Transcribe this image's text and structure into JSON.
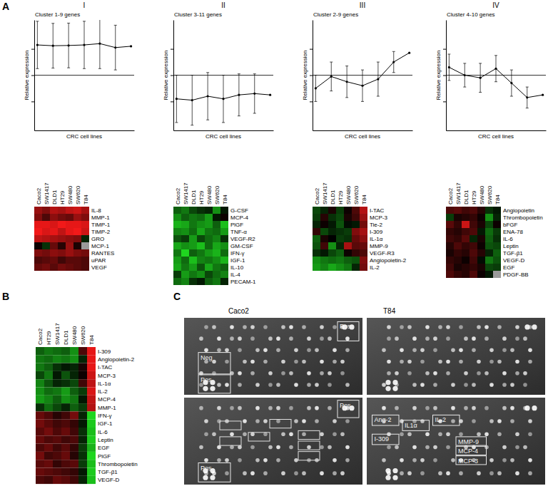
{
  "figure_labels": [
    "A",
    "B",
    "C"
  ],
  "chart_data": [
    {
      "type": "line",
      "panel_label": "I",
      "title": "Cluster 1-9 genes",
      "x_label": "CRC cell lines",
      "y_label": "Relative expression",
      "x": [
        1,
        2,
        3,
        4,
        5,
        6,
        7
      ],
      "xlim": [
        0.8,
        7.2
      ],
      "ylim": [
        -2.1,
        2.1
      ],
      "yticks": [
        -1,
        0,
        1
      ],
      "reference_line": 0,
      "tick_labels": false,
      "values": [
        1.15,
        1.12,
        1.13,
        1.15,
        1.2,
        1.05,
        1.1
      ],
      "errors": [
        0.9,
        0.85,
        0.85,
        0.9,
        0.95,
        0.85,
        null
      ],
      "color": "#000000",
      "marker": "circle"
    },
    {
      "type": "heatmap",
      "columns": [
        "Caco2",
        "SW1417",
        "DLD1",
        "HT29",
        "SW480",
        "SW620",
        "T84"
      ],
      "rows": [
        "IL-8",
        "MMP-1",
        "TIMP-1",
        "TIMP-2",
        "GRO",
        "MCP-1",
        "RANTES",
        "uPAR",
        "VEGF"
      ],
      "zlim": [
        -2,
        2
      ],
      "cells": [
        [
          1.2,
          1.0,
          1.4,
          1.3,
          1.5,
          1.6,
          1.3
        ],
        [
          1.0,
          0.6,
          1.1,
          0.9,
          0.8,
          1.2,
          1.0
        ],
        [
          1.8,
          1.8,
          1.7,
          1.9,
          1.8,
          1.8,
          1.7
        ],
        [
          1.9,
          1.7,
          1.8,
          1.5,
          1.8,
          1.9,
          1.6
        ],
        [
          1.5,
          1.4,
          1.3,
          1.2,
          1.1,
          1.0,
          -0.3
        ],
        [
          0.1,
          -0.4,
          0.8,
          0.3,
          1.2,
          0.2,
          null
        ],
        [
          1.0,
          0.9,
          1.1,
          1.0,
          1.2,
          1.0,
          0.9
        ],
        [
          0.6,
          0.7,
          0.8,
          0.5,
          0.7,
          0.7,
          0.6
        ],
        [
          0.8,
          0.9,
          0.7,
          0.9,
          0.8,
          0.7,
          0.6
        ]
      ]
    },
    {
      "type": "line",
      "panel_label": "II",
      "title": "Cluster 3-11 genes",
      "x_label": "CRC cell lines",
      "y_label": "Relative expression",
      "x": [
        1,
        2,
        3,
        4,
        5,
        6,
        7
      ],
      "xlim": [
        0.8,
        7.2
      ],
      "ylim": [
        -2.1,
        2.1
      ],
      "yticks": [
        -1,
        0,
        1
      ],
      "reference_line": 0,
      "tick_labels": false,
      "values": [
        -0.9,
        -0.95,
        -0.8,
        -0.9,
        -0.75,
        -0.7,
        -0.75
      ],
      "errors": [
        0.9,
        0.95,
        0.9,
        0.9,
        0.8,
        0.75,
        null
      ],
      "color": "#000000",
      "marker": "circle"
    },
    {
      "type": "heatmap",
      "columns": [
        "Caco2",
        "SW1417",
        "DLD1",
        "HT29",
        "SW480",
        "SW620",
        "T84"
      ],
      "rows": [
        "G-CSF",
        "MCP-4",
        "PlGF",
        "TNF-α",
        "VEGF-R2",
        "GM-CSF",
        "IFN-γ",
        "IGF-1",
        "IL-10",
        "IL-4",
        "PECAM-1"
      ],
      "zlim": [
        -2,
        2
      ],
      "cells": [
        [
          -0.8,
          -1.0,
          -0.6,
          -0.4,
          -0.3,
          -1.2,
          -0.2
        ],
        [
          -1.2,
          -0.8,
          -1.0,
          -0.9,
          -1.3,
          -0.2,
          0.1
        ],
        [
          -1.5,
          -1.4,
          -1.0,
          -1.2,
          -1.3,
          -0.8,
          -1.6
        ],
        [
          -1.1,
          -1.2,
          -0.9,
          -1.4,
          -1.0,
          -0.9,
          -1.3
        ],
        [
          -0.7,
          -0.5,
          -1.3,
          -0.6,
          -0.9,
          -1.1,
          -0.4
        ],
        [
          -1.4,
          -1.2,
          -1.3,
          -1.6,
          -0.9,
          -1.4,
          -1.2
        ],
        [
          -1.0,
          -1.8,
          -0.8,
          -1.0,
          -1.3,
          -1.5,
          -0.9
        ],
        [
          -1.3,
          -0.9,
          -1.6,
          -1.1,
          -1.0,
          -1.2,
          -1.5
        ],
        [
          -1.4,
          -1.0,
          -1.3,
          -0.7,
          -1.4,
          -1.0,
          -0.8
        ],
        [
          -0.5,
          -1.3,
          -1.0,
          -1.2,
          -0.6,
          -0.9,
          -1.1
        ],
        [
          -0.9,
          -1.1,
          -0.4,
          -0.2,
          -0.8,
          -1.0,
          -0.3
        ]
      ]
    },
    {
      "type": "line",
      "panel_label": "III",
      "title": "Cluster 2-9 genes",
      "x_label": "CRC cell lines",
      "y_label": "Relative expression",
      "x": [
        1,
        2,
        3,
        4,
        5,
        6,
        7
      ],
      "xlim": [
        0.8,
        7.2
      ],
      "ylim": [
        -2.1,
        2.1
      ],
      "yticks": [
        -1,
        0,
        1
      ],
      "reference_line": 0,
      "tick_labels": false,
      "values": [
        -0.5,
        -0.05,
        -0.25,
        -0.4,
        -0.15,
        0.5,
        0.85
      ],
      "errors": [
        0.5,
        0.55,
        0.6,
        0.6,
        0.65,
        0.4,
        null
      ],
      "color": "#000000",
      "marker": "circle"
    },
    {
      "type": "heatmap",
      "columns": [
        "Caco2",
        "SW1417",
        "DLD1",
        "HT29",
        "SW480",
        "SW620",
        "T84"
      ],
      "rows": [
        "I-TAC",
        "MCP-3",
        "Tie-2",
        "I-309",
        "IL-1α",
        "MMP-9",
        "VEGF-R3",
        "Angiopoietin-2",
        "IL-2"
      ],
      "zlim": [
        -2,
        2
      ],
      "cells": [
        [
          -0.6,
          -0.3,
          0.2,
          -0.5,
          0.1,
          0.6,
          1.4
        ],
        [
          -0.5,
          0.3,
          -0.4,
          -0.6,
          0.2,
          0.5,
          1.2
        ],
        [
          -0.3,
          0.1,
          -0.2,
          -0.7,
          -0.1,
          -0.2,
          0.9
        ],
        [
          0.4,
          -0.6,
          -0.3,
          -0.4,
          -0.5,
          1.0,
          1.3
        ],
        [
          -0.8,
          0.2,
          0.0,
          -0.5,
          -0.4,
          0.8,
          1.1
        ],
        [
          -0.7,
          0.5,
          -1.2,
          -0.3,
          1.3,
          0.7,
          0.8
        ],
        [
          -0.4,
          -0.2,
          -0.6,
          -0.8,
          0.1,
          0.4,
          0.6
        ],
        [
          -1.2,
          -1.0,
          -0.9,
          -1.0,
          -0.8,
          -0.7,
          1.0
        ],
        [
          -1.3,
          -1.1,
          -1.4,
          -1.2,
          -1.0,
          -0.3,
          0.9
        ]
      ]
    },
    {
      "type": "line",
      "panel_label": "IV",
      "title": "Cluster 4-10 genes",
      "x_label": "CRC cell lines",
      "y_label": "Relative expression",
      "x": [
        1,
        2,
        3,
        4,
        5,
        6,
        7
      ],
      "xlim": [
        0.8,
        7.2
      ],
      "ylim": [
        -2.1,
        2.1
      ],
      "yticks": [
        -1,
        0,
        1
      ],
      "reference_line": 0,
      "tick_labels": false,
      "values": [
        0.3,
        0.0,
        -0.1,
        0.25,
        -0.3,
        -0.85,
        -0.75
      ],
      "errors": [
        0.5,
        0.45,
        0.55,
        0.5,
        0.5,
        0.4,
        null
      ],
      "color": "#000000",
      "marker": "circle"
    },
    {
      "type": "heatmap",
      "columns": [
        "Caco2",
        "SW1417",
        "DLD1",
        "HT29",
        "SW480",
        "SW620",
        "T84"
      ],
      "rows": [
        "Angiopoietin",
        "Thrombopoietin",
        "bFGF",
        "ENA-78",
        "IL-6",
        "Leptin",
        "TGF-β1",
        "VEGF-D",
        "EGF",
        "PDGF-BB"
      ],
      "zlim": [
        -2,
        2
      ],
      "cells": [
        [
          0.6,
          0.7,
          0.5,
          0.6,
          0.3,
          -0.4,
          -0.2
        ],
        [
          -0.5,
          0.2,
          0.3,
          0.4,
          0.1,
          -1.2,
          -0.3
        ],
        [
          0.7,
          0.4,
          1.6,
          0.5,
          0.2,
          -0.6,
          0.1
        ],
        [
          0.4,
          0.3,
          0.5,
          0.6,
          -0.2,
          -0.9,
          -0.5
        ],
        [
          0.5,
          0.4,
          0.7,
          -0.3,
          0.2,
          -0.8,
          -0.4
        ],
        [
          0.3,
          0.6,
          0.4,
          0.5,
          0.1,
          -0.7,
          -0.6
        ],
        [
          0.2,
          0.4,
          0.3,
          0.6,
          0.3,
          -0.3,
          -0.8
        ],
        [
          0.4,
          0.3,
          0.1,
          0.5,
          -0.1,
          -1.0,
          -0.7
        ],
        [
          0.5,
          0.2,
          0.3,
          0.4,
          0.2,
          -0.6,
          -0.5
        ],
        [
          0.6,
          0.4,
          0.3,
          0.6,
          0.1,
          -0.2,
          null
        ]
      ]
    },
    {
      "type": "heatmap",
      "columns": [
        "Caco2",
        "HT29",
        "SW1417",
        "DLD1",
        "SW480",
        "SW620",
        "T84"
      ],
      "rows": [
        "I-309",
        "Angiopoietin-2",
        "I-TAC",
        "MCP-3",
        "IL-1α",
        "IL-2",
        "MCP-4",
        "MMP-1",
        "IFN-γ",
        "IGF-1",
        "IL-6",
        "Leptin",
        "EGF",
        "PlGF",
        "Thrombopoietin",
        "TGF-β1",
        "VEGF-D"
      ],
      "zlim": [
        -2,
        2
      ],
      "cells": [
        [
          -0.8,
          -1.0,
          -0.9,
          -0.8,
          -1.2,
          0.6,
          1.8
        ],
        [
          -1.0,
          -0.9,
          -1.1,
          -1.0,
          -1.2,
          -0.3,
          1.8
        ],
        [
          -1.0,
          -0.8,
          -0.4,
          -0.2,
          -0.3,
          0.2,
          1.8
        ],
        [
          -0.6,
          -1.0,
          -0.2,
          -0.7,
          -0.3,
          0.1,
          1.6
        ],
        [
          -1.1,
          -0.7,
          -0.3,
          -0.4,
          -0.6,
          0.5,
          1.5
        ],
        [
          -1.2,
          -0.9,
          -1.0,
          -1.3,
          -0.8,
          -0.5,
          1.7
        ],
        [
          -1.3,
          -1.1,
          -0.8,
          -1.2,
          -1.0,
          -0.2,
          1.5
        ],
        [
          -0.4,
          -0.9,
          -0.6,
          -0.3,
          -0.8,
          -0.5,
          1.4
        ],
        [
          0.8,
          0.6,
          0.3,
          0.5,
          0.9,
          -0.3,
          -1.8
        ],
        [
          0.9,
          0.7,
          0.5,
          0.6,
          0.4,
          -0.2,
          -1.7
        ],
        [
          0.7,
          0.9,
          0.6,
          0.8,
          0.5,
          -0.4,
          -1.6
        ],
        [
          0.8,
          0.6,
          0.7,
          0.5,
          0.6,
          -0.3,
          -1.7
        ],
        [
          0.6,
          0.8,
          0.5,
          0.7,
          0.4,
          -0.5,
          -1.5
        ],
        [
          0.9,
          0.5,
          0.6,
          0.8,
          0.3,
          -0.4,
          -1.8
        ],
        [
          0.7,
          0.8,
          0.4,
          0.6,
          0.7,
          -0.5,
          -1.6
        ],
        [
          0.8,
          0.7,
          0.6,
          0.5,
          0.4,
          -0.2,
          -1.7
        ],
        [
          0.6,
          0.5,
          0.8,
          0.7,
          0.5,
          -0.3,
          -1.6
        ]
      ]
    },
    {
      "type": "image",
      "columns": [
        "Caco2",
        "T84"
      ],
      "images": [
        {
          "labels": [
            "Pos",
            "Neg",
            "Pos"
          ]
        },
        {},
        {
          "labels": [
            "Pos",
            "Pos"
          ]
        },
        {
          "labels": [
            "Ang-2",
            "IL1α",
            "IL-2",
            "I-309",
            "MMP-9",
            "MCP-4",
            "MCP-3"
          ]
        }
      ]
    }
  ]
}
